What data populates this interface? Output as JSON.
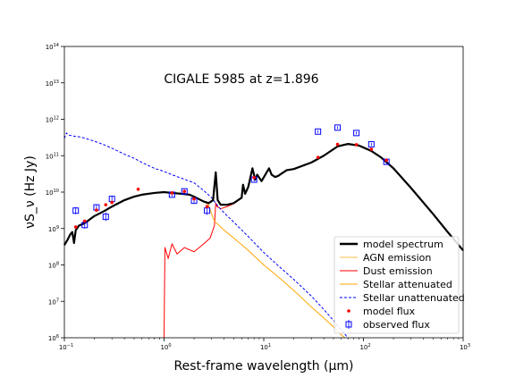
{
  "chart_data": {
    "type": "line",
    "title": "CIGALE 5985 at z=1.896",
    "xlabel": "Rest-frame wavelength (μm)",
    "ylabel": "νS_ν (Hz Jy)",
    "xscale": "log",
    "yscale": "log",
    "xlim": [
      0.1,
      1000
    ],
    "ylim": [
      1000000,
      100000000000000
    ],
    "x_ticks": [
      {
        "value": 0.1,
        "base": "10",
        "exp": "−1"
      },
      {
        "value": 1,
        "base": "10",
        "exp": "0"
      },
      {
        "value": 10,
        "base": "10",
        "exp": "1"
      },
      {
        "value": 100,
        "base": "10",
        "exp": "2"
      },
      {
        "value": 1000,
        "base": "10",
        "exp": "3"
      }
    ],
    "y_ticks": [
      {
        "value": 1000000,
        "base": "10",
        "exp": "6"
      },
      {
        "value": 10000000,
        "base": "10",
        "exp": "7"
      },
      {
        "value": 100000000,
        "base": "10",
        "exp": "8"
      },
      {
        "value": 1000000000,
        "base": "10",
        "exp": "9"
      },
      {
        "value": 10000000000,
        "base": "10",
        "exp": "10"
      },
      {
        "value": 100000000000,
        "base": "10",
        "exp": "11"
      },
      {
        "value": 1000000000000,
        "base": "10",
        "exp": "12"
      },
      {
        "value": 10000000000000,
        "base": "10",
        "exp": "13"
      },
      {
        "value": 100000000000000,
        "base": "10",
        "exp": "14"
      }
    ],
    "legend_position": "lower right",
    "legend": [
      {
        "label": "model spectrum",
        "color": "#000000",
        "style": "thick"
      },
      {
        "label": "AGN emission",
        "color": "#ffa500",
        "style": "thin"
      },
      {
        "label": "Dust emission",
        "color": "#ff0000",
        "style": "solid"
      },
      {
        "label": "Stellar attenuated",
        "color": "#ffa500",
        "style": "solid"
      },
      {
        "label": "Stellar unattenuated",
        "color": "#0000ff",
        "style": "dashed"
      },
      {
        "label": "model flux",
        "color": "#ff0000",
        "style": "dot"
      },
      {
        "label": "observed flux",
        "color": "#0000ff",
        "style": "square"
      }
    ],
    "series": [
      {
        "name": "model spectrum",
        "color": "#000000",
        "points": [
          [
            0.1,
            350000000.0
          ],
          [
            0.108,
            500000000.0
          ],
          [
            0.115,
            700000000.0
          ],
          [
            0.12,
            800000000.0
          ],
          [
            0.125,
            400000000.0
          ],
          [
            0.13,
            900000000.0
          ],
          [
            0.14,
            1200000000.0
          ],
          [
            0.16,
            1400000000.0
          ],
          [
            0.2,
            2200000000.0
          ],
          [
            0.25,
            3000000000.0
          ],
          [
            0.3,
            4000000000.0
          ],
          [
            0.4,
            6000000000.0
          ],
          [
            0.5,
            7500000000.0
          ],
          [
            0.6,
            8500000000.0
          ],
          [
            0.8,
            9500000000.0
          ],
          [
            1.0,
            10000000000.0
          ],
          [
            1.2,
            9500000000.0
          ],
          [
            1.5,
            9000000000.0
          ],
          [
            1.8,
            8500000000.0
          ],
          [
            2.0,
            7500000000.0
          ],
          [
            2.5,
            5500000000.0
          ],
          [
            2.8,
            5000000000.0
          ],
          [
            3.1,
            6000000000.0
          ],
          [
            3.3,
            35000000000.0
          ],
          [
            3.45,
            6000000000.0
          ],
          [
            3.7,
            4500000000.0
          ],
          [
            4.3,
            4500000000.0
          ],
          [
            5.0,
            5000000000.0
          ],
          [
            6.0,
            7000000000.0
          ],
          [
            6.2,
            16000000000.0
          ],
          [
            6.5,
            9000000000.0
          ],
          [
            7.0,
            14000000000.0
          ],
          [
            7.7,
            45000000000.0
          ],
          [
            8.2,
            22000000000.0
          ],
          [
            8.6,
            30000000000.0
          ],
          [
            9.5,
            20000000000.0
          ],
          [
            11.3,
            45000000000.0
          ],
          [
            12,
            30000000000.0
          ],
          [
            13,
            26000000000.0
          ],
          [
            14,
            28000000000.0
          ],
          [
            15,
            32000000000.0
          ],
          [
            17,
            40000000000.0
          ],
          [
            20,
            43000000000.0
          ],
          [
            30,
            65000000000.0
          ],
          [
            40,
            100000000000.0
          ],
          [
            55,
            180000000000.0
          ],
          [
            70,
            210000000000.0
          ],
          [
            90,
            190000000000.0
          ],
          [
            120,
            135000000000.0
          ],
          [
            150,
            90000000000.0
          ],
          [
            200,
            45000000000.0
          ],
          [
            300,
            13000000000.0
          ],
          [
            500,
            2500000000.0
          ],
          [
            700,
            800000000.0
          ],
          [
            1000,
            250000000.0
          ]
        ]
      },
      {
        "name": "Dust emission",
        "color": "#ff0000",
        "points": [
          [
            1.0,
            1000000.0
          ],
          [
            1.02,
            300000000.0
          ],
          [
            1.1,
            150000000.0
          ],
          [
            1.2,
            380000000.0
          ],
          [
            1.35,
            200000000.0
          ],
          [
            1.6,
            300000000.0
          ],
          [
            2.0,
            230000000.0
          ],
          [
            2.5,
            380000000.0
          ],
          [
            2.9,
            550000000.0
          ],
          [
            3.2,
            1200000000.0
          ],
          [
            3.3,
            5000000000.0
          ],
          [
            3.4,
            4000000000.0
          ],
          [
            3.7,
            3500000000.0
          ],
          [
            4.3,
            4000000000.0
          ],
          [
            5.0,
            4800000000.0
          ],
          [
            6.0,
            6800000000.0
          ],
          [
            6.2,
            16000000000.0
          ],
          [
            6.5,
            8800000000.0
          ],
          [
            7.0,
            13500000000.0
          ],
          [
            7.7,
            45000000000.0
          ],
          [
            8.2,
            22000000000.0
          ],
          [
            8.6,
            30000000000.0
          ],
          [
            9.5,
            20000000000.0
          ],
          [
            11.3,
            45000000000.0
          ],
          [
            12,
            30000000000.0
          ],
          [
            13,
            26000000000.0
          ],
          [
            14,
            28000000000.0
          ],
          [
            15,
            32000000000.0
          ],
          [
            17,
            40000000000.0
          ],
          [
            20,
            43000000000.0
          ],
          [
            30,
            65000000000.0
          ],
          [
            40,
            100000000000.0
          ],
          [
            55,
            180000000000.0
          ],
          [
            70,
            210000000000.0
          ],
          [
            90,
            190000000000.0
          ],
          [
            120,
            135000000000.0
          ],
          [
            150,
            90000000000.0
          ],
          [
            200,
            45000000000.0
          ],
          [
            300,
            13000000000.0
          ],
          [
            500,
            2500000000.0
          ],
          [
            700,
            800000000.0
          ],
          [
            1000,
            250000000.0
          ]
        ]
      },
      {
        "name": "Stellar attenuated",
        "color": "#ffa500",
        "points": [
          [
            0.1,
            350000000.0
          ],
          [
            0.108,
            500000000.0
          ],
          [
            0.115,
            700000000.0
          ],
          [
            0.12,
            800000000.0
          ],
          [
            0.125,
            400000000.0
          ],
          [
            0.13,
            900000000.0
          ],
          [
            0.14,
            1200000000.0
          ],
          [
            0.16,
            1400000000.0
          ],
          [
            0.2,
            2200000000.0
          ],
          [
            0.25,
            3000000000.0
          ],
          [
            0.3,
            4000000000.0
          ],
          [
            0.4,
            6000000000.0
          ],
          [
            0.5,
            7500000000.0
          ],
          [
            0.6,
            8500000000.0
          ],
          [
            0.8,
            9500000000.0
          ],
          [
            1.0,
            10000000000.0
          ],
          [
            1.2,
            9500000000.0
          ],
          [
            1.5,
            9000000000.0
          ],
          [
            1.8,
            8500000000.0
          ],
          [
            2.0,
            7500000000.0
          ],
          [
            2.5,
            5500000000.0
          ],
          [
            2.8,
            4500000000.0
          ],
          [
            3.0,
            2500000000.0
          ],
          [
            3.2,
            1600000000.0
          ],
          [
            4.0,
            900000000.0
          ],
          [
            5.0,
            550000000.0
          ],
          [
            7.0,
            250000000.0
          ],
          [
            10,
            100000000.0
          ],
          [
            15,
            40000000.0
          ],
          [
            20,
            20000000.0
          ],
          [
            30,
            7000000.0
          ],
          [
            40,
            3500000.0
          ],
          [
            50,
            2000000.0
          ],
          [
            60,
            1200000.0
          ],
          [
            65,
            1000000.0
          ]
        ]
      },
      {
        "name": "Stellar unattenuated",
        "color": "#0000ff",
        "points": [
          [
            0.1,
            300000000000.0
          ],
          [
            0.105,
            420000000000.0
          ],
          [
            0.11,
            370000000000.0
          ],
          [
            0.12,
            350000000000.0
          ],
          [
            0.13,
            340000000000.0
          ],
          [
            0.15,
            320000000000.0
          ],
          [
            0.2,
            250000000000.0
          ],
          [
            0.25,
            200000000000.0
          ],
          [
            0.3,
            160000000000.0
          ],
          [
            0.4,
            110000000000.0
          ],
          [
            0.5,
            85000000000.0
          ],
          [
            0.6,
            65000000000.0
          ],
          [
            0.8,
            45000000000.0
          ],
          [
            1.0,
            37000000000.0
          ],
          [
            1.2,
            30000000000.0
          ],
          [
            1.5,
            24000000000.0
          ],
          [
            2.0,
            18000000000.0
          ],
          [
            2.5,
            11000000000.0
          ],
          [
            3.0,
            7000000000.0
          ],
          [
            3.5,
            4000000000.0
          ],
          [
            4.0,
            2700000000.0
          ],
          [
            5.0,
            1500000000.0
          ],
          [
            7.0,
            600000000.0
          ],
          [
            10,
            220000000.0
          ],
          [
            15,
            80000000.0
          ],
          [
            20,
            40000000.0
          ],
          [
            30,
            14000000.0
          ],
          [
            40,
            6000000.0
          ],
          [
            50,
            3000000.0
          ],
          [
            60,
            1600000.0
          ],
          [
            70,
            1000000.0
          ]
        ]
      }
    ],
    "model_flux": [
      [
        0.13,
        1100000000.0
      ],
      [
        0.16,
        1600000000.0
      ],
      [
        0.21,
        3200000000.0
      ],
      [
        0.26,
        4500000000.0
      ],
      [
        0.3,
        5200000000.0
      ],
      [
        0.55,
        12000000000.0
      ],
      [
        1.2,
        9500000000.0
      ],
      [
        1.6,
        10500000000.0
      ],
      [
        2.0,
        6500000000.0
      ],
      [
        2.7,
        4000000000.0
      ],
      [
        8.0,
        25000000000.0
      ],
      [
        35,
        90000000000.0
      ],
      [
        55,
        205000000000.0
      ],
      [
        85,
        200000000000.0
      ],
      [
        120,
        150000000000.0
      ],
      [
        170,
        75000000000.0
      ]
    ],
    "observed_flux": [
      {
        "x": 0.13,
        "y": 3100000000.0,
        "err": 0.1
      },
      {
        "x": 0.16,
        "y": 1250000000.0,
        "err": 0.1
      },
      {
        "x": 0.21,
        "y": 3800000000.0,
        "err": 0.08
      },
      {
        "x": 0.26,
        "y": 2100000000.0,
        "err": 0.12
      },
      {
        "x": 0.3,
        "y": 6500000000.0,
        "err": 0.08
      },
      {
        "x": 1.2,
        "y": 8500000000.0,
        "err": 0.05
      },
      {
        "x": 1.6,
        "y": 10500000000.0,
        "err": 0.05
      },
      {
        "x": 2.0,
        "y": 5800000000.0,
        "err": 0.08
      },
      {
        "x": 2.7,
        "y": 3100000000.0,
        "err": 0.12
      },
      {
        "x": 8.0,
        "y": 22000000000.0,
        "err": 0.05
      },
      {
        "x": 35,
        "y": 460000000000.0,
        "err": 0.04
      },
      {
        "x": 55,
        "y": 590000000000.0,
        "err": 0.04
      },
      {
        "x": 85,
        "y": 420000000000.0,
        "err": 0.04
      },
      {
        "x": 120,
        "y": 205000000000.0,
        "err": 0.04
      },
      {
        "x": 170,
        "y": 68000000000.0,
        "err": 0.05
      }
    ]
  }
}
